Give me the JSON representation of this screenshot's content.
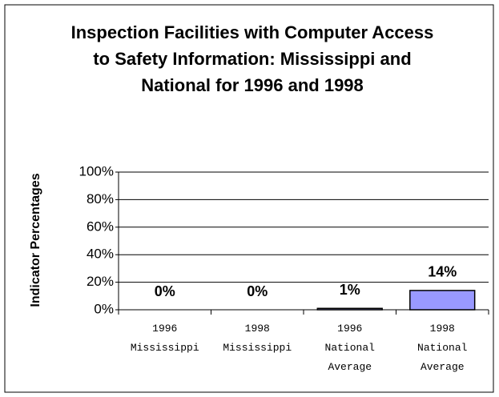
{
  "chart_data": {
    "type": "bar",
    "title": "Inspection Facilities with Computer Access to Safety Information: Mississippi and National for 1996 and 1998",
    "y_label": "Indicator Percentages",
    "categories": [
      "1996 Mississippi",
      "1998 Mississippi",
      "1996 National Average",
      "1998 National Average"
    ],
    "values": [
      0,
      0,
      1,
      14
    ],
    "value_labels": [
      "0%",
      "0%",
      "1%",
      "14%"
    ],
    "color": "#9999ff",
    "ylim": [
      0,
      100
    ],
    "yticks": [
      {
        "value": 0,
        "label": "0%"
      },
      {
        "value": 20,
        "label": "20%"
      },
      {
        "value": 40,
        "label": "40%"
      },
      {
        "value": 60,
        "label": "60%"
      },
      {
        "value": 80,
        "label": "80%"
      },
      {
        "value": 100,
        "label": "100%"
      }
    ],
    "grid": true
  }
}
